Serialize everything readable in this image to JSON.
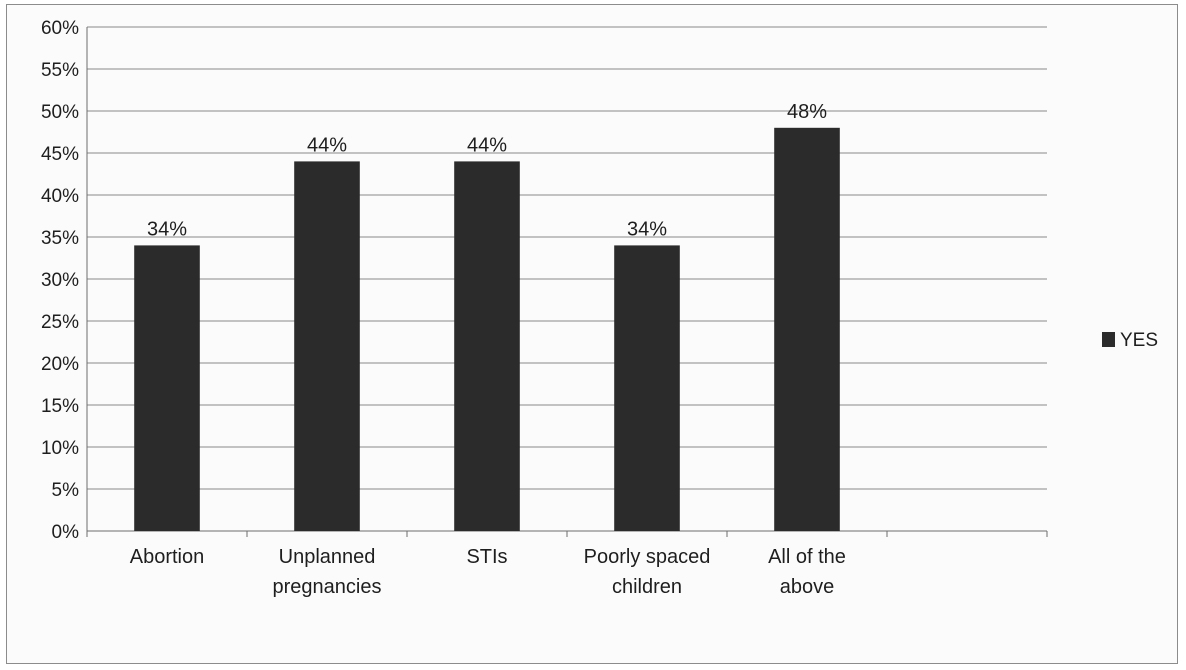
{
  "chart_data": {
    "type": "bar",
    "categories": [
      "Abortion",
      "Unplanned pregnancies",
      "STIs",
      "Poorly spaced children",
      "All of the above"
    ],
    "category_lines": [
      [
        "Abortion"
      ],
      [
        "Unplanned",
        "pregnancies"
      ],
      [
        "STIs"
      ],
      [
        "Poorly spaced",
        "children"
      ],
      [
        "All of the",
        "above"
      ]
    ],
    "series": [
      {
        "name": "YES",
        "values": [
          34,
          44,
          44,
          34,
          48
        ],
        "color": "#2b2b2b"
      }
    ],
    "data_labels": [
      "34%",
      "44%",
      "44%",
      "34%",
      "48%"
    ],
    "ylim": [
      0,
      60
    ],
    "ytick_step": 5,
    "ytick_labels": [
      "0%",
      "5%",
      "10%",
      "15%",
      "20%",
      "25%",
      "30%",
      "35%",
      "40%",
      "45%",
      "50%",
      "55%",
      "60%"
    ],
    "title": "",
    "xlabel": "",
    "ylabel": "",
    "grid": true,
    "legend_position": "right",
    "empty_slots": 1
  }
}
